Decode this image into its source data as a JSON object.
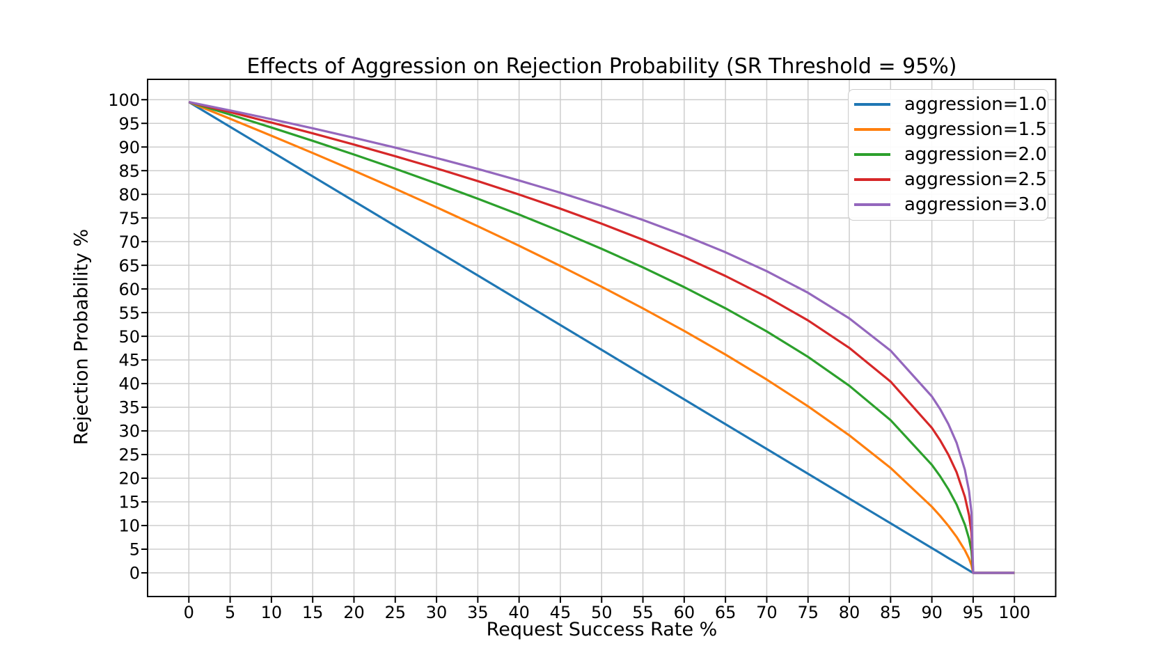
{
  "chart_data": {
    "type": "line",
    "title": "Effects of Aggression on Rejection Probability (SR Threshold = 95%)",
    "xlabel": "Request Success Rate %",
    "ylabel": "Rejection Probability %",
    "sr_threshold_percent": 95,
    "grid": true,
    "grid_color": "#cdcdcd",
    "legend_position": "upper right",
    "xlim": [
      -5,
      105
    ],
    "ylim": [
      -5,
      104.3
    ],
    "x_ticks": [
      0,
      5,
      10,
      15,
      20,
      25,
      30,
      35,
      40,
      45,
      50,
      55,
      60,
      65,
      70,
      75,
      80,
      85,
      90,
      95,
      100
    ],
    "y_ticks": [
      0,
      5,
      10,
      15,
      20,
      25,
      30,
      35,
      40,
      45,
      50,
      55,
      60,
      65,
      70,
      75,
      80,
      85,
      90,
      95,
      100
    ],
    "x": [
      0,
      5,
      10,
      15,
      20,
      25,
      30,
      35,
      40,
      45,
      50,
      55,
      60,
      65,
      70,
      75,
      80,
      85,
      90,
      91,
      92,
      93,
      94,
      94.5,
      94.8,
      95,
      100
    ],
    "series": [
      {
        "name": "aggression=1.0",
        "aggression": 1.0,
        "color": "#1f77b4",
        "y": [
          99.5,
          94.26,
          89.03,
          83.79,
          78.55,
          73.32,
          68.08,
          62.84,
          57.61,
          52.37,
          47.13,
          41.89,
          36.66,
          31.42,
          26.18,
          20.95,
          15.71,
          10.47,
          5.24,
          4.19,
          3.14,
          2.09,
          1.05,
          0.52,
          0.21,
          0,
          0
        ]
      },
      {
        "name": "aggression=1.5",
        "aggression": 1.5,
        "color": "#ff7f0e",
        "y": [
          99.5,
          95.98,
          92.39,
          88.73,
          85.0,
          81.17,
          77.26,
          73.25,
          69.12,
          64.86,
          60.46,
          55.9,
          51.14,
          46.14,
          40.86,
          35.21,
          29.07,
          22.18,
          13.97,
          12.04,
          9.94,
          7.59,
          4.78,
          3.01,
          1.63,
          0,
          0
        ]
      },
      {
        "name": "aggression=2.0",
        "aggression": 2.0,
        "color": "#2ca02c",
        "y": [
          99.5,
          96.85,
          94.12,
          91.31,
          88.41,
          85.41,
          82.3,
          79.07,
          75.71,
          72.18,
          68.48,
          64.56,
          60.39,
          55.91,
          51.04,
          45.65,
          39.54,
          32.28,
          22.83,
          20.42,
          17.68,
          14.44,
          10.21,
          7.22,
          4.57,
          0,
          0
        ]
      },
      {
        "name": "aggression=2.5",
        "aggression": 2.5,
        "color": "#d62728",
        "y": [
          99.5,
          97.37,
          95.17,
          92.89,
          90.52,
          88.06,
          85.49,
          82.79,
          79.96,
          76.97,
          73.79,
          70.4,
          66.74,
          62.74,
          58.33,
          53.35,
          47.55,
          40.43,
          30.64,
          28.03,
          24.98,
          21.24,
          16.1,
          12.2,
          8.45,
          0,
          0
        ]
      },
      {
        "name": "aggression=3.0",
        "aggression": 3.0,
        "color": "#9467bd",
        "y": [
          99.5,
          97.72,
          95.88,
          93.96,
          91.96,
          89.87,
          87.68,
          85.37,
          82.93,
          80.34,
          77.56,
          74.58,
          71.33,
          67.76,
          63.76,
          59.19,
          53.78,
          46.98,
          37.29,
          34.61,
          31.45,
          27.47,
          21.8,
          17.31,
          12.75,
          0,
          0
        ]
      }
    ]
  }
}
